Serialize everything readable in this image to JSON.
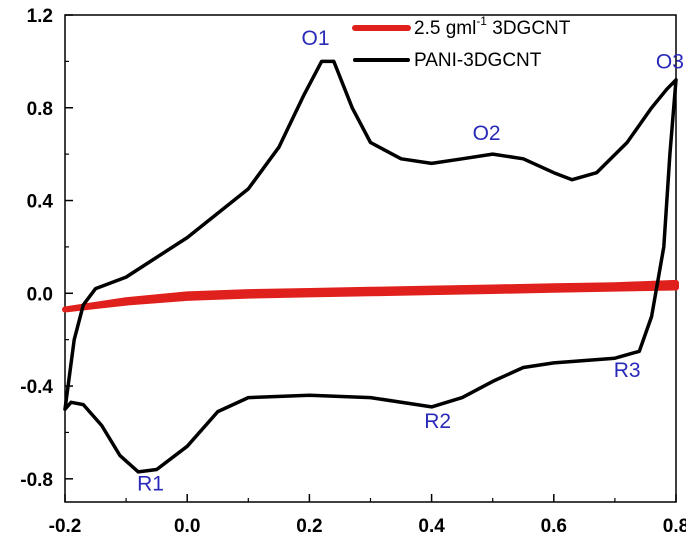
{
  "chart_data": {
    "type": "line",
    "title": "",
    "xlabel": "",
    "ylabel": "",
    "xlim": [
      -0.2,
      0.8
    ],
    "ylim": [
      -0.9,
      1.2
    ],
    "grid": false,
    "legend_position": "top-right",
    "x_ticks": [
      {
        "value": -0.2,
        "label": "-0.2"
      },
      {
        "value": 0.0,
        "label": "0.0"
      },
      {
        "value": 0.2,
        "label": "0.2"
      },
      {
        "value": 0.4,
        "label": "0.4"
      },
      {
        "value": 0.6,
        "label": "0.6"
      },
      {
        "value": 0.8,
        "label": "0.8"
      }
    ],
    "y_ticks": [
      {
        "value": -0.8,
        "label": "-0.8"
      },
      {
        "value": -0.4,
        "label": "-0.4"
      },
      {
        "value": 0.0,
        "label": "0.0"
      },
      {
        "value": 0.4,
        "label": "0.4"
      },
      {
        "value": 0.8,
        "label": "0.8"
      },
      {
        "value": 1.2,
        "label": "1.2"
      }
    ],
    "series": [
      {
        "name": "2.5 gml-1 3DGCNT",
        "legend_main": "2.5 gml",
        "legend_sup": "-1",
        "legend_tail": " 3DGCNT",
        "color": "#e0201c",
        "points": [
          [
            -0.2,
            -0.07
          ],
          [
            -0.15,
            -0.05
          ],
          [
            -0.1,
            -0.03
          ],
          [
            0.0,
            -0.005
          ],
          [
            0.1,
            0.005
          ],
          [
            0.2,
            0.01
          ],
          [
            0.3,
            0.015
          ],
          [
            0.4,
            0.02
          ],
          [
            0.5,
            0.025
          ],
          [
            0.6,
            0.03
          ],
          [
            0.7,
            0.035
          ],
          [
            0.8,
            0.045
          ],
          [
            0.8,
            0.025
          ],
          [
            0.7,
            0.02
          ],
          [
            0.6,
            0.015
          ],
          [
            0.5,
            0.01
          ],
          [
            0.4,
            0.005
          ],
          [
            0.3,
            0.0
          ],
          [
            0.2,
            -0.005
          ],
          [
            0.1,
            -0.01
          ],
          [
            0.0,
            -0.02
          ],
          [
            -0.1,
            -0.04
          ],
          [
            -0.15,
            -0.055
          ],
          [
            -0.2,
            -0.07
          ]
        ]
      },
      {
        "name": "PANI-3DGCNT",
        "legend_main": "PANI-3DGCNT",
        "legend_sup": "",
        "legend_tail": "",
        "color": "#000000",
        "points": [
          [
            -0.2,
            -0.5
          ],
          [
            -0.19,
            -0.47
          ],
          [
            -0.17,
            -0.48
          ],
          [
            -0.14,
            -0.57
          ],
          [
            -0.11,
            -0.7
          ],
          [
            -0.08,
            -0.77
          ],
          [
            -0.05,
            -0.76
          ],
          [
            0.0,
            -0.66
          ],
          [
            0.05,
            -0.51
          ],
          [
            0.1,
            -0.45
          ],
          [
            0.2,
            -0.44
          ],
          [
            0.3,
            -0.45
          ],
          [
            0.4,
            -0.49
          ],
          [
            0.45,
            -0.45
          ],
          [
            0.5,
            -0.38
          ],
          [
            0.55,
            -0.32
          ],
          [
            0.6,
            -0.3
          ],
          [
            0.7,
            -0.28
          ],
          [
            0.74,
            -0.25
          ],
          [
            0.76,
            -0.1
          ],
          [
            0.78,
            0.2
          ],
          [
            0.79,
            0.6
          ],
          [
            0.8,
            0.92
          ],
          [
            0.785,
            0.88
          ],
          [
            0.76,
            0.8
          ],
          [
            0.72,
            0.65
          ],
          [
            0.67,
            0.52
          ],
          [
            0.63,
            0.49
          ],
          [
            0.6,
            0.52
          ],
          [
            0.55,
            0.58
          ],
          [
            0.5,
            0.6
          ],
          [
            0.45,
            0.58
          ],
          [
            0.4,
            0.56
          ],
          [
            0.35,
            0.58
          ],
          [
            0.3,
            0.65
          ],
          [
            0.27,
            0.8
          ],
          [
            0.24,
            1.0
          ],
          [
            0.22,
            1.0
          ],
          [
            0.19,
            0.85
          ],
          [
            0.15,
            0.63
          ],
          [
            0.1,
            0.45
          ],
          [
            0.0,
            0.24
          ],
          [
            -0.1,
            0.07
          ],
          [
            -0.15,
            0.02
          ],
          [
            -0.17,
            -0.05
          ],
          [
            -0.185,
            -0.2
          ],
          [
            -0.2,
            -0.5
          ]
        ]
      }
    ],
    "annotations": [
      {
        "text": "O1",
        "x": 0.21,
        "y": 1.07
      },
      {
        "text": "O2",
        "x": 0.49,
        "y": 0.66
      },
      {
        "text": "O3",
        "x": 0.79,
        "y": 0.97
      },
      {
        "text": "R1",
        "x": -0.06,
        "y": -0.85
      },
      {
        "text": "R2",
        "x": 0.41,
        "y": -0.58
      },
      {
        "text": "R3",
        "x": 0.72,
        "y": -0.36
      }
    ],
    "annotation_color": "#2a2ab8"
  }
}
